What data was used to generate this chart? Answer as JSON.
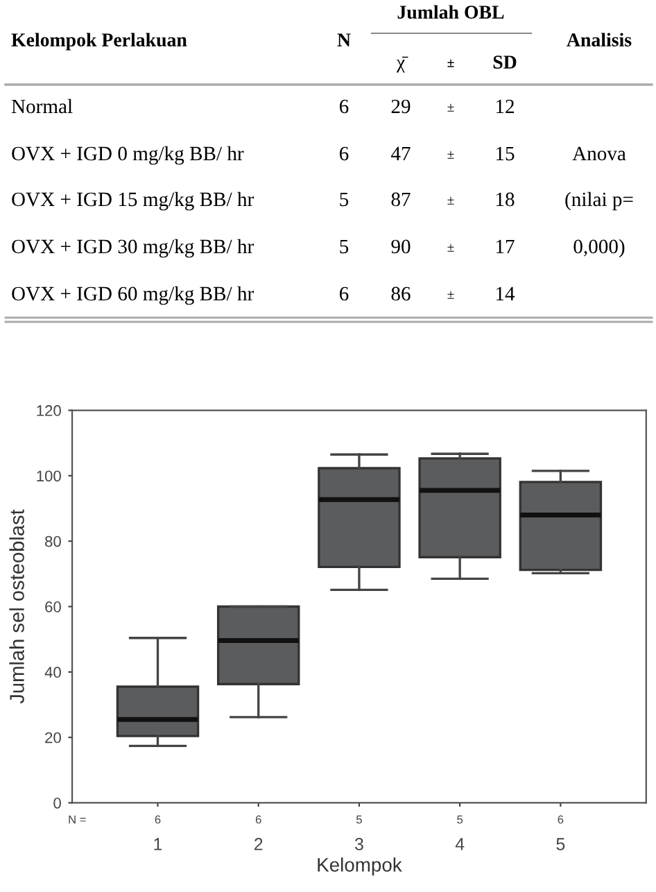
{
  "chart_data": [
    {
      "type": "other",
      "categories": [
        "Kelompok Perlakuan",
        "N",
        "Jumlah OBL",
        "χ̄",
        "±",
        "SD",
        "Analisis"
      ],
      "y_categories": [
        "Normal",
        "OVX + IGD 0 mg/kg BB/ hr",
        "OVX + IGD 15 mg/kg BB/ hr",
        "OVX + IGD 30 mg/kg BB/ hr",
        "OVX + IGD 60 mg/kg BB/ hr"
      ],
      "cell_labels": [
        [
          "6",
          "29",
          "±",
          "12"
        ],
        [
          "6",
          "47",
          "±",
          "15"
        ],
        [
          "5",
          "87",
          "±",
          "18"
        ],
        [
          "5",
          "90",
          "±",
          "17"
        ],
        [
          "6",
          "86",
          "±",
          "14"
        ]
      ],
      "annotations": [
        "Anova",
        "(nilai p=",
        "0,000)"
      ]
    },
    {
      "type": "box",
      "categories": [
        "1",
        "2",
        "3",
        "4",
        "5"
      ],
      "xlabel": "Kelompok",
      "ylabel": "Jumlah sel osteoblast",
      "color": "#5a5c5e",
      "ylim": [
        0,
        120
      ],
      "yticks": [
        0,
        20,
        40,
        60,
        80,
        100,
        120
      ],
      "grid": false,
      "boxes": [
        {
          "low": 17.4,
          "q1": 20.4,
          "median": 25.5,
          "q3": 35.5,
          "high": 50.4
        },
        {
          "low": 26.2,
          "q1": 36.3,
          "median": 49.6,
          "q3": 60,
          "high": 60
        },
        {
          "low": 65.1,
          "q1": 72.1,
          "median": 92.7,
          "q3": 102.3,
          "high": 106.5
        },
        {
          "low": 68.5,
          "q1": 75.1,
          "median": 95.5,
          "q3": 105.3,
          "high": 106.7
        },
        {
          "low": 70.2,
          "q1": 71.2,
          "median": 88,
          "q3": 98.1,
          "high": 101.5
        }
      ],
      "annotations": [
        "N =",
        "6",
        "6",
        "5",
        "5",
        "6"
      ]
    }
  ]
}
